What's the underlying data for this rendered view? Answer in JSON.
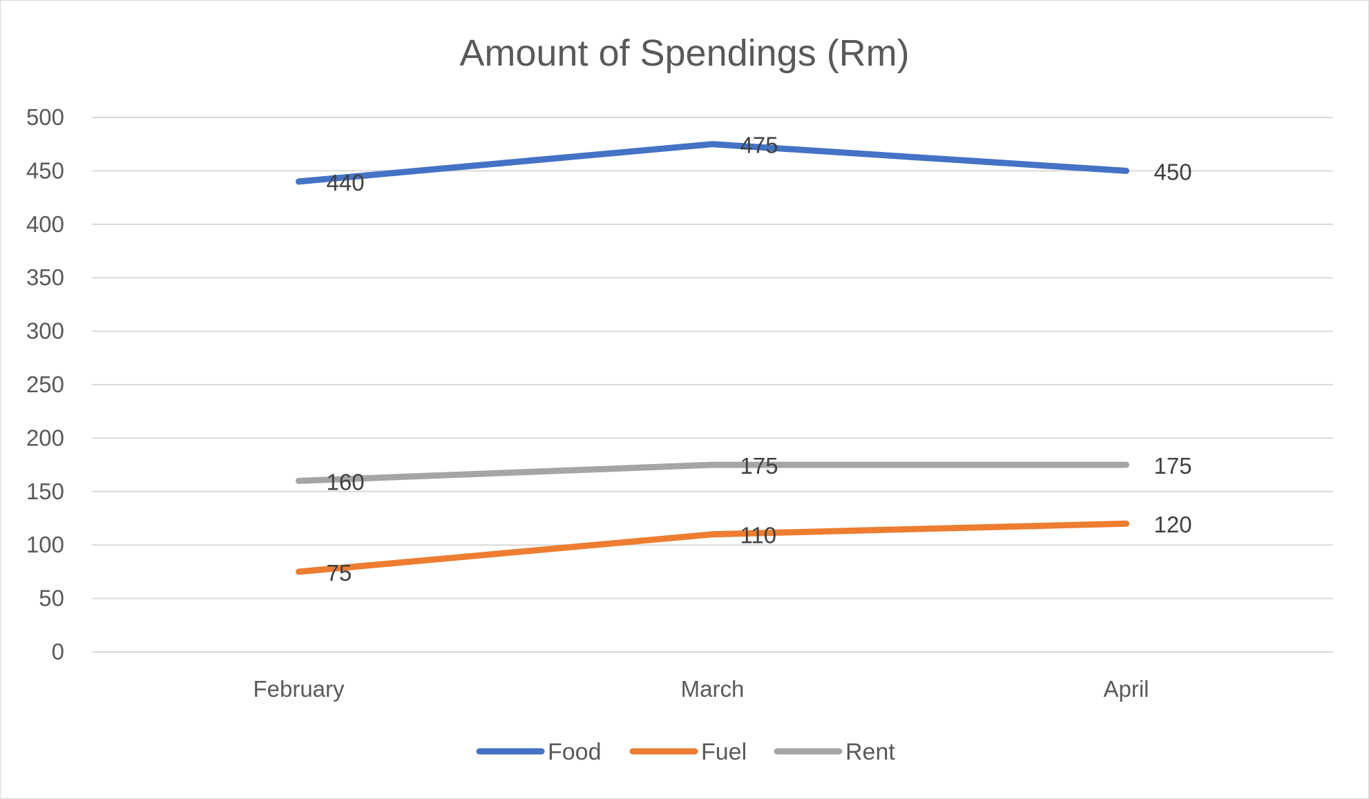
{
  "chart_data": {
    "type": "line",
    "title": "Amount of Spendings (Rm)",
    "xlabel": "",
    "ylabel": "",
    "categories": [
      "February",
      "March",
      "April"
    ],
    "ylim": [
      0,
      500
    ],
    "yticks": [
      0,
      50,
      100,
      150,
      200,
      250,
      300,
      350,
      400,
      450,
      500
    ],
    "grid": true,
    "legend_position": "bottom",
    "data_labels": true,
    "series": [
      {
        "name": "Food",
        "values": [
          440,
          475,
          450
        ],
        "color": "#4472c4"
      },
      {
        "name": "Fuel",
        "values": [
          75,
          110,
          120
        ],
        "color": "#ed7d31"
      },
      {
        "name": "Rent",
        "values": [
          160,
          175,
          175
        ],
        "color": "#a5a5a5"
      }
    ]
  }
}
